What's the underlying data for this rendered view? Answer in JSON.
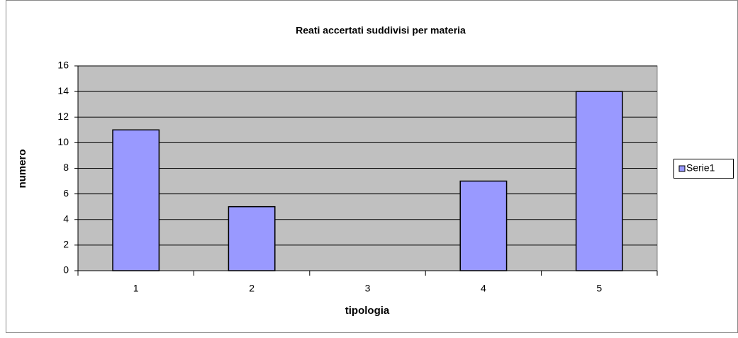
{
  "chart_data": {
    "type": "bar",
    "title": "Reati accertati suddivisi per materia",
    "x_label": "tipologia",
    "y_label": "numero",
    "categories": [
      "1",
      "2",
      "3",
      "4",
      "5"
    ],
    "series": [
      {
        "name": "Serie1",
        "color": "#9999ff",
        "values": [
          11,
          5,
          0,
          7,
          14
        ]
      }
    ],
    "ylim": [
      0,
      16
    ],
    "yticks": [
      0,
      2,
      4,
      6,
      8,
      10,
      12,
      14,
      16
    ],
    "grid": true,
    "legend": "right"
  }
}
